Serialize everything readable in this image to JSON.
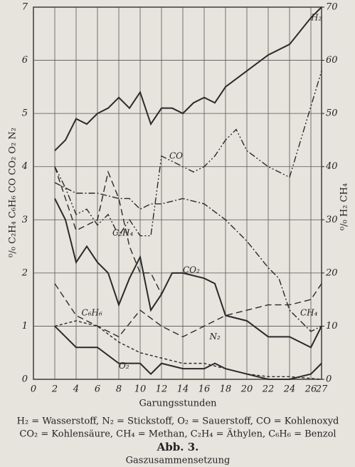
{
  "chart_data": {
    "type": "line",
    "x_label": "Garungsstunden",
    "y_label": "⁰/₀ C₂H₄ C₆H₆ CO CO₂ O₂ N₂",
    "y2_label": "⁰/₀ H₂ CH₄",
    "xlim": [
      0,
      27
    ],
    "xticks": [
      0,
      2,
      4,
      6,
      8,
      10,
      12,
      14,
      16,
      18,
      20,
      22,
      24,
      26,
      27
    ],
    "ylim": [
      0,
      7
    ],
    "yticks": [
      0,
      1,
      2,
      3,
      4,
      5,
      6,
      7
    ],
    "y2lim": [
      0,
      70
    ],
    "y2ticks": [
      0,
      10,
      20,
      30,
      40,
      50,
      60,
      70
    ],
    "grid": true,
    "series": [
      {
        "name": "H₂",
        "axis": "y2",
        "color": "#2a2a2a",
        "style": "solid",
        "x": [
          2,
          3,
          4,
          5,
          6,
          7,
          8,
          9,
          10,
          11,
          12,
          13,
          14,
          15,
          16,
          17,
          18,
          20,
          22,
          24,
          26,
          27
        ],
        "values": [
          43,
          45,
          49,
          48,
          50,
          51,
          53,
          51,
          54,
          48,
          51,
          51,
          50,
          52,
          53,
          52,
          55,
          58,
          61,
          63,
          68,
          70
        ]
      },
      {
        "name": "CO",
        "color": "#2a2a2a",
        "style": "dashdotdot",
        "x": [
          2,
          3,
          4,
          5,
          6,
          7,
          8,
          9,
          10,
          11,
          12,
          13,
          14,
          15,
          16,
          17,
          18,
          19,
          20,
          22,
          24,
          27
        ],
        "values": [
          4.0,
          3.6,
          3.1,
          3.2,
          2.9,
          3.1,
          2.7,
          3.0,
          2.7,
          2.7,
          4.2,
          4.1,
          4.0,
          3.9,
          4.0,
          4.2,
          4.5,
          4.7,
          4.3,
          4.0,
          3.8,
          5.8
        ]
      },
      {
        "name": "C₂H₄",
        "color": "#2a2a2a",
        "style": "dashed",
        "x": [
          2,
          3,
          4,
          5,
          6,
          7,
          8,
          9,
          10,
          11,
          12
        ],
        "values": [
          4.0,
          3.4,
          2.8,
          2.9,
          3.0,
          3.9,
          3.4,
          2.5,
          2.0,
          2.0,
          1.6
        ]
      },
      {
        "name": "N₂",
        "color": "#2a2a2a",
        "style": "dashdot",
        "x": [
          2,
          4,
          6,
          8,
          9,
          10,
          11,
          12,
          14,
          16,
          18,
          20,
          22,
          23,
          24,
          26,
          27
        ],
        "values": [
          3.7,
          3.5,
          3.5,
          3.4,
          3.4,
          3.2,
          3.3,
          3.3,
          3.4,
          3.3,
          3.0,
          2.6,
          2.1,
          1.9,
          1.3,
          0.9,
          1.0
        ]
      },
      {
        "name": "CO₂",
        "color": "#2a2a2a",
        "style": "solid",
        "x": [
          2,
          3,
          4,
          5,
          6,
          7,
          8,
          9,
          10,
          11,
          12,
          13,
          14,
          16,
          17,
          18,
          20,
          22,
          24,
          26,
          27
        ],
        "values": [
          3.4,
          3.0,
          2.2,
          2.5,
          2.2,
          2.0,
          1.4,
          1.9,
          2.3,
          1.3,
          1.6,
          2.0,
          2.0,
          1.9,
          1.8,
          1.2,
          1.1,
          0.8,
          0.8,
          0.6,
          1.0
        ]
      },
      {
        "name": "CH₄",
        "axis": "y2",
        "color": "#2a2a2a",
        "style": "dashed",
        "x": [
          2,
          4,
          6,
          8,
          10,
          12,
          14,
          16,
          18,
          20,
          22,
          24,
          26,
          27
        ],
        "values": [
          18,
          12,
          10,
          8,
          13,
          10,
          8,
          10,
          12,
          13,
          14,
          14,
          15,
          18
        ]
      },
      {
        "name": "C₆H₆",
        "color": "#2a2a2a",
        "style": "shortdash",
        "x": [
          2,
          4,
          6,
          8,
          10,
          12,
          14,
          16,
          18,
          20,
          22,
          24,
          27
        ],
        "values": [
          1.0,
          1.1,
          1.0,
          0.7,
          0.5,
          0.4,
          0.3,
          0.3,
          0.2,
          0.1,
          0.05,
          0.05,
          0.0
        ]
      },
      {
        "name": "O₂",
        "color": "#2a2a2a",
        "style": "solid",
        "x": [
          2,
          3,
          4,
          6,
          8,
          10,
          11,
          12,
          14,
          16,
          17,
          18,
          20,
          22,
          24,
          26,
          27
        ],
        "values": [
          1.0,
          0.8,
          0.6,
          0.6,
          0.3,
          0.3,
          0.1,
          0.3,
          0.2,
          0.2,
          0.3,
          0.2,
          0.1,
          0.0,
          0.0,
          0.1,
          0.3
        ]
      }
    ],
    "caption": [
      "H₂ = Wasserstoff,  N₂ = Stickstoff,  O₂ = Sauerstoff, CO = Kohlenoxyd",
      "CO₂ = Kohlensäure, CH₄ = Methan, C₂H₄ = Äthylen, C₆H₆ = Benzol"
    ],
    "figure_number": "Abb. 3.",
    "figure_title": "Gaszusammensetzung"
  }
}
